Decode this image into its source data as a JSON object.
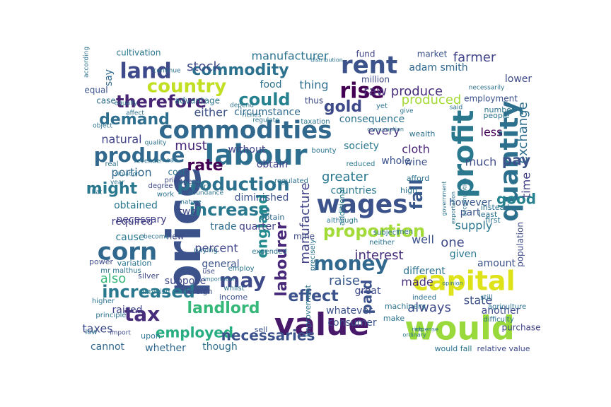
{
  "word_cloud": {
    "colormap": "viridis",
    "background": "#ffffff",
    "words": [
      {
        "text": "would",
        "color": "#9ad93b"
      },
      {
        "text": "price",
        "color": "#3b528b"
      },
      {
        "text": "value",
        "color": "#48186a"
      },
      {
        "text": "labour",
        "color": "#2e6e8e"
      },
      {
        "text": "commodities",
        "color": "#31688e"
      },
      {
        "text": "capital",
        "color": "#dde318"
      },
      {
        "text": "profit",
        "color": "#2a788e"
      },
      {
        "text": "rent",
        "color": "#3b528b"
      },
      {
        "text": "corn",
        "color": "#31688e"
      },
      {
        "text": "quantity",
        "color": "#2d708e"
      },
      {
        "text": "land",
        "color": "#3e4a89"
      },
      {
        "text": "wages",
        "color": "#3b528b"
      },
      {
        "text": "rise",
        "color": "#440154"
      },
      {
        "text": "tax",
        "color": "#472d7b"
      },
      {
        "text": "country",
        "color": "#c2df23"
      },
      {
        "text": "produce",
        "color": "#31688e"
      },
      {
        "text": "money",
        "color": "#31688e"
      },
      {
        "text": "production",
        "color": "#2c728e"
      },
      {
        "text": "commodity",
        "color": "#2c728e"
      },
      {
        "text": "may",
        "color": "#3e4a89"
      },
      {
        "text": "proportion",
        "color": "#a2da37"
      },
      {
        "text": "increase",
        "color": "#2a788e"
      },
      {
        "text": "fall",
        "color": "#38598c"
      },
      {
        "text": "could",
        "color": "#26828e"
      },
      {
        "text": "therefore",
        "color": "#482475"
      },
      {
        "text": "increased",
        "color": "#2a788e"
      },
      {
        "text": "landlord",
        "color": "#35b779"
      },
      {
        "text": "demand",
        "color": "#2e6e8e"
      },
      {
        "text": "labourer",
        "color": "#482878"
      },
      {
        "text": "england",
        "color": "#238a8d"
      },
      {
        "text": "effect",
        "color": "#3b528b"
      },
      {
        "text": "gold",
        "color": "#3e4a89"
      },
      {
        "text": "employed",
        "color": "#27ad81"
      },
      {
        "text": "rate",
        "color": "#440154"
      },
      {
        "text": "might",
        "color": "#2a788e"
      },
      {
        "text": "raw produce",
        "color": "#472d7b"
      },
      {
        "text": "manufacture",
        "color": "#404387"
      },
      {
        "text": "stock",
        "color": "#3e4a89"
      },
      {
        "text": "paid",
        "color": "#3b528b"
      },
      {
        "text": "interest",
        "color": "#472d7b"
      },
      {
        "text": "good",
        "color": "#26828e"
      },
      {
        "text": "necessaries",
        "color": "#3b528b"
      },
      {
        "text": "exchange",
        "color": "#2e6e8e"
      },
      {
        "text": "manufacturer",
        "color": "#2c728e"
      },
      {
        "text": "farmer",
        "color": "#414487"
      },
      {
        "text": "pay",
        "color": "#3b528b"
      },
      {
        "text": "always",
        "color": "#3e4a89"
      },
      {
        "text": "raise",
        "color": "#38598c"
      },
      {
        "text": "consequence",
        "color": "#2c728e"
      },
      {
        "text": "adam smith",
        "color": "#31688e"
      },
      {
        "text": "produced",
        "color": "#a5db36"
      },
      {
        "text": "taxes",
        "color": "#3e4a89"
      },
      {
        "text": "also",
        "color": "#35b779"
      },
      {
        "text": "greater",
        "color": "#2a788e"
      },
      {
        "text": "one",
        "color": "#3e4a89"
      },
      {
        "text": "must",
        "color": "#482878"
      },
      {
        "text": "state",
        "color": "#3b528b"
      },
      {
        "text": "supply",
        "color": "#2a788e"
      },
      {
        "text": "percent",
        "color": "#404387"
      },
      {
        "text": "made",
        "color": "#472d7b"
      },
      {
        "text": "well",
        "color": "#3b528b"
      },
      {
        "text": "time",
        "color": "#424086"
      },
      {
        "text": "cloth",
        "color": "#482475"
      },
      {
        "text": "every",
        "color": "#46337f"
      },
      {
        "text": "either",
        "color": "#3b528b"
      },
      {
        "text": "circumstance",
        "color": "#31688e"
      },
      {
        "text": "thing",
        "color": "#2e6e8e"
      },
      {
        "text": "food",
        "color": "#2c728e"
      },
      {
        "text": "without",
        "color": "#404387"
      },
      {
        "text": "less",
        "color": "#440154"
      },
      {
        "text": "much",
        "color": "#3e4a89"
      },
      {
        "text": "wine",
        "color": "#3b528b"
      },
      {
        "text": "society",
        "color": "#2a788e"
      },
      {
        "text": "whole",
        "color": "#3b528b"
      },
      {
        "text": "natural",
        "color": "#404387"
      },
      {
        "text": "portion",
        "color": "#31688e"
      },
      {
        "text": "obtain",
        "color": "#404387"
      },
      {
        "text": "obtained",
        "color": "#2a788e"
      },
      {
        "text": "necessary",
        "color": "#424086"
      },
      {
        "text": "diminished",
        "color": "#3b528b"
      },
      {
        "text": "countries",
        "color": "#2a788e"
      },
      {
        "text": "required",
        "color": "#424086"
      },
      {
        "text": "two",
        "color": "#3e4a89"
      },
      {
        "text": "trade",
        "color": "#2e6e8e"
      },
      {
        "text": "quarter",
        "color": "#404387"
      },
      {
        "text": "cause",
        "color": "#2a788e"
      },
      {
        "text": "general",
        "color": "#3b528b"
      },
      {
        "text": "amount",
        "color": "#3b528b"
      },
      {
        "text": "different",
        "color": "#2c728e"
      },
      {
        "text": "great",
        "color": "#3e4a89"
      },
      {
        "text": "whatever",
        "color": "#3b528b"
      },
      {
        "text": "another",
        "color": "#3e4a89"
      },
      {
        "text": "consumer",
        "color": "#3b528b"
      },
      {
        "text": "whether",
        "color": "#31688e"
      },
      {
        "text": "though",
        "color": "#2e6e8e"
      },
      {
        "text": "cannot",
        "color": "#31688e"
      },
      {
        "text": "raised",
        "color": "#404387"
      },
      {
        "text": "suppose",
        "color": "#3e4a89"
      },
      {
        "text": "however",
        "color": "#38598c"
      },
      {
        "text": "part",
        "color": "#3b528b"
      },
      {
        "text": "given",
        "color": "#2a788e"
      },
      {
        "text": "population",
        "color": "#3e4a89"
      },
      {
        "text": "purchase",
        "color": "#404387"
      },
      {
        "text": "employment",
        "color": "#3b528b"
      },
      {
        "text": "lower",
        "color": "#3e4a89"
      },
      {
        "text": "market",
        "color": "#3b528b"
      },
      {
        "text": "million",
        "color": "#3e4a89"
      },
      {
        "text": "equal",
        "color": "#3b528b"
      },
      {
        "text": "case",
        "color": "#2e6e8e"
      },
      {
        "text": "say",
        "color": "#31688e"
      },
      {
        "text": "advantage",
        "color": "#2c728e"
      },
      {
        "text": "cultivation",
        "color": "#2a788e"
      },
      {
        "text": "fund",
        "color": "#404387"
      },
      {
        "text": "thus",
        "color": "#3e4a89"
      },
      {
        "text": "mine",
        "color": "#3e4a89"
      },
      {
        "text": "improvement",
        "color": "#2c728e"
      },
      {
        "text": "additional",
        "color": "#2a788e"
      },
      {
        "text": "new",
        "color": "#3e4a89"
      },
      {
        "text": "obtain",
        "color": "#31688e"
      },
      {
        "text": "sell",
        "color": "#3b528b"
      },
      {
        "text": "income",
        "color": "#3b528b"
      },
      {
        "text": "foreign",
        "color": "#3e4a89"
      },
      {
        "text": "upon",
        "color": "#2c728e"
      },
      {
        "text": "would fall",
        "color": "#2c728e"
      },
      {
        "text": "relative value",
        "color": "#3e4a89"
      },
      {
        "text": "variation",
        "color": "#2c728e"
      },
      {
        "text": "power",
        "color": "#3e4a89"
      },
      {
        "text": "silver",
        "color": "#3e4a89"
      },
      {
        "text": "mr malthus",
        "color": "#2c728e"
      },
      {
        "text": "higher",
        "color": "#2c728e"
      },
      {
        "text": "diminish",
        "color": "#2a788e"
      },
      {
        "text": "principle",
        "color": "#2c728e"
      },
      {
        "text": "low",
        "color": "#2c728e"
      },
      {
        "text": "import",
        "color": "#3e4a89"
      },
      {
        "text": "reduced",
        "color": "#2a788e"
      },
      {
        "text": "use",
        "color": "#3e4a89"
      },
      {
        "text": "whilst",
        "color": "#2c728e"
      },
      {
        "text": "paying",
        "color": "#2c728e"
      },
      {
        "text": "work",
        "color": "#2c728e"
      },
      {
        "text": "degree",
        "color": "#3e4a89"
      },
      {
        "text": "price",
        "color": "#3e4a89"
      },
      {
        "text": "cost",
        "color": "#2c728e"
      },
      {
        "text": "appear",
        "color": "#3e4a89"
      },
      {
        "text": "instead",
        "color": "#2c728e"
      },
      {
        "text": "least",
        "color": "#2c728e"
      },
      {
        "text": "first",
        "color": "#2c728e"
      },
      {
        "text": "people",
        "color": "#2c728e"
      },
      {
        "text": "number",
        "color": "#2c728e"
      },
      {
        "text": "wealth",
        "color": "#2c728e"
      },
      {
        "text": "afford",
        "color": "#2c728e"
      },
      {
        "text": "high",
        "color": "#2c728e"
      },
      {
        "text": "machinery",
        "color": "#2c728e"
      },
      {
        "text": "make",
        "color": "#2c728e"
      },
      {
        "text": "indeed",
        "color": "#2c728e"
      },
      {
        "text": "still",
        "color": "#2c728e"
      },
      {
        "text": "expended",
        "color": "#2c728e"
      },
      {
        "text": "employ",
        "color": "#2c728e"
      },
      {
        "text": "precisely",
        "color": "#2c728e"
      },
      {
        "text": "neither",
        "color": "#2c728e"
      },
      {
        "text": "although",
        "color": "#2c728e"
      },
      {
        "text": "subject",
        "color": "#2c728e"
      },
      {
        "text": "men",
        "color": "#2c728e"
      },
      {
        "text": "yet",
        "color": "#2c728e"
      },
      {
        "text": "bounty",
        "color": "#2c728e"
      },
      {
        "text": "taxation",
        "color": "#2c728e"
      },
      {
        "text": "regulated",
        "color": "#2c728e"
      },
      {
        "text": "agriculture",
        "color": "#2c728e"
      },
      {
        "text": "difficulty",
        "color": "#2c728e"
      },
      {
        "text": "real",
        "color": "#2c728e"
      },
      {
        "text": "year",
        "color": "#2c728e"
      },
      {
        "text": "mean",
        "color": "#2c728e"
      },
      {
        "text": "nature",
        "color": "#2c728e"
      },
      {
        "text": "revenue",
        "color": "#2c728e"
      },
      {
        "text": "quality",
        "color": "#2c728e"
      },
      {
        "text": "never",
        "color": "#2c728e"
      },
      {
        "text": "abundance",
        "color": "#2c728e"
      },
      {
        "text": "equally",
        "color": "#2c728e"
      },
      {
        "text": "affect",
        "color": "#2c728e"
      },
      {
        "text": "regulate",
        "color": "#2c728e"
      },
      {
        "text": "riches",
        "color": "#2c728e"
      },
      {
        "text": "depend",
        "color": "#2c728e"
      },
      {
        "text": "necessarily",
        "color": "#2c728e"
      },
      {
        "text": "according",
        "color": "#2c728e"
      },
      {
        "text": "continue",
        "color": "#2c728e"
      },
      {
        "text": "said",
        "color": "#2c728e"
      },
      {
        "text": "give",
        "color": "#2c728e"
      },
      {
        "text": "become",
        "color": "#2c728e"
      },
      {
        "text": "hat",
        "color": "#2c728e"
      },
      {
        "text": "object",
        "color": "#2c728e"
      },
      {
        "text": "situation",
        "color": "#2c728e"
      },
      {
        "text": "importation",
        "color": "#2c728e"
      },
      {
        "text": "exportation",
        "color": "#2c728e"
      },
      {
        "text": "accumulation",
        "color": "#2c728e"
      },
      {
        "text": "government",
        "color": "#2c728e"
      },
      {
        "text": "consumption",
        "color": "#2c728e"
      },
      {
        "text": "distribution",
        "color": "#2c728e"
      },
      {
        "text": "ordinary",
        "color": "#2c728e"
      },
      {
        "text": "rich",
        "color": "#2c728e"
      },
      {
        "text": "expense",
        "color": "#2c728e"
      },
      {
        "text": "opinion",
        "color": "#2c728e"
      }
    ]
  }
}
